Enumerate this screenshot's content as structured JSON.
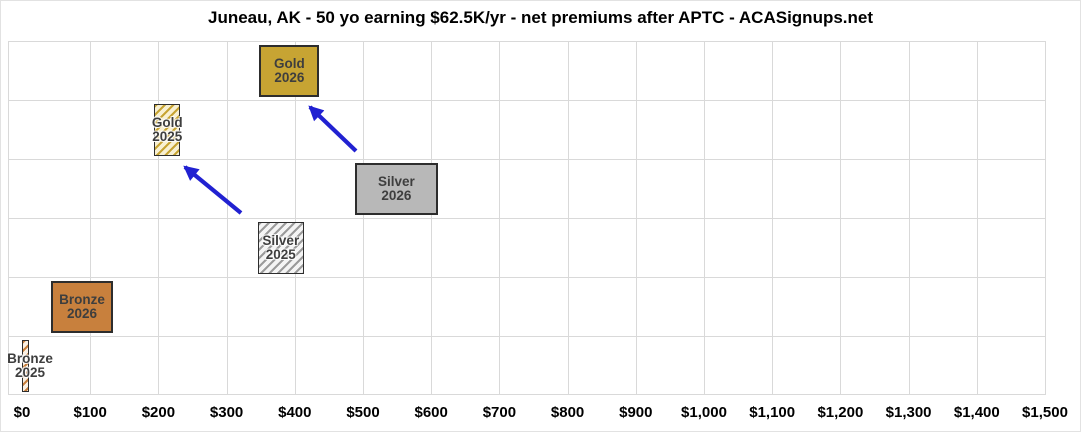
{
  "chart_data": {
    "type": "bar",
    "subtype": "floating-horizontal-boxes",
    "title": "Juneau, AK - 50 yo earning $62.5K/yr - net premiums after APTC - ACASignups.net",
    "xlabel": "",
    "ylabel": "",
    "x_axis": {
      "min": 0,
      "max": 1500,
      "tick_step": 100,
      "tick_labels": [
        "$0",
        "$100",
        "$200",
        "$300",
        "$400",
        "$500",
        "$600",
        "$700",
        "$800",
        "$900",
        "$1,000",
        "$1,100",
        "$1,200",
        "$1,300",
        "$1,400",
        "$1,500"
      ]
    },
    "grid": true,
    "rows": [
      {
        "label": "Gold 2026",
        "label_lines": [
          "Gold",
          "2026"
        ],
        "row": 1,
        "x_range": [
          348,
          436
        ],
        "fill": "solid",
        "color": "#c7a433",
        "hatch_bg": null
      },
      {
        "label": "Gold 2025",
        "label_lines": [
          "Gold",
          "2025"
        ],
        "row": 2,
        "x_range": [
          194,
          232
        ],
        "fill": "hatched",
        "color": "#c7a433",
        "hatch_bg": "#f8f0d2"
      },
      {
        "label": "Silver 2026",
        "label_lines": [
          "Silver",
          "2026"
        ],
        "row": 3,
        "x_range": [
          488,
          610
        ],
        "fill": "solid",
        "color": "#b8b8b8",
        "hatch_bg": null
      },
      {
        "label": "Silver 2025",
        "label_lines": [
          "Silver",
          "2025"
        ],
        "row": 4,
        "x_range": [
          346,
          413
        ],
        "fill": "hatched",
        "color": "#9b9b9b",
        "hatch_bg": "#f4f4f4"
      },
      {
        "label": "Bronze 2026",
        "label_lines": [
          "Bronze",
          "2026"
        ],
        "row": 5,
        "x_range": [
          42,
          134
        ],
        "fill": "solid",
        "color": "#c8803d",
        "hatch_bg": null
      },
      {
        "label": "Bronze 2025",
        "label_lines": [
          "Bronze",
          "2025"
        ],
        "row": 6,
        "x_range": [
          0,
          10
        ],
        "fill": "hatched",
        "color": "#c8803d",
        "hatch_bg": "#fbf1e4"
      }
    ],
    "arrows": [
      {
        "from": "Silver 2026",
        "to": "Gold 2026"
      },
      {
        "from": "Silver 2025",
        "to": "Gold 2025"
      }
    ]
  },
  "colors": {
    "arrow": "#2121d1",
    "grid": "#d9d9d9",
    "box_border": "#2d2d2d",
    "label_text": "#3e3e3e",
    "title_text": "#000000"
  }
}
